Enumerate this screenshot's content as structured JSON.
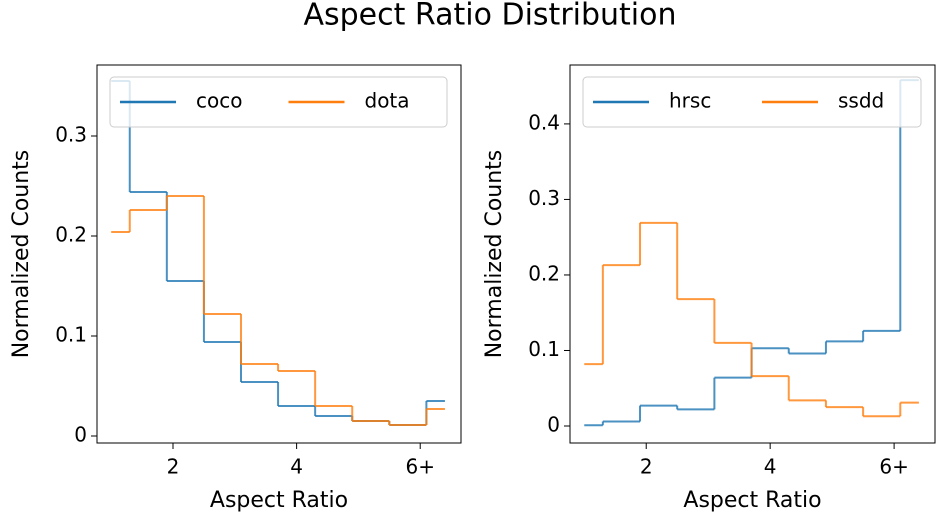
{
  "title": "Aspect Ratio Distribution",
  "chart_data": [
    {
      "type": "histogram",
      "xlabel": "Aspect Ratio",
      "ylabel": "Normalized Counts",
      "bins": [
        1.0,
        1.3,
        1.9,
        2.5,
        3.1,
        3.7,
        4.3,
        4.9,
        5.5,
        6.1,
        6.4
      ],
      "xlim": [
        0.77,
        6.66
      ],
      "ylim": [
        -0.007,
        0.371
      ],
      "xticks": [
        2,
        4,
        {
          "value": 6,
          "label": "6+"
        }
      ],
      "yticks": [
        0.0,
        0.1,
        0.2,
        0.3
      ],
      "legend": "upper",
      "legend_columns": 2,
      "series": [
        {
          "name": "coco",
          "color": "#1f77b4",
          "values": [
            0.355,
            0.244,
            0.155,
            0.094,
            0.054,
            0.03,
            0.02,
            0.015,
            0.011,
            0.035
          ]
        },
        {
          "name": "dota",
          "color": "#ff7f0e",
          "values": [
            0.204,
            0.226,
            0.24,
            0.122,
            0.072,
            0.065,
            0.03,
            0.015,
            0.011,
            0.027
          ]
        }
      ]
    },
    {
      "type": "histogram",
      "xlabel": "Aspect Ratio",
      "ylabel": "Normalized Counts",
      "bins": [
        1.0,
        1.3,
        1.9,
        2.5,
        3.1,
        3.7,
        4.3,
        4.9,
        5.5,
        6.1,
        6.4
      ],
      "xlim": [
        0.77,
        6.66
      ],
      "ylim": [
        -0.0225,
        0.478
      ],
      "xticks": [
        2,
        4,
        {
          "value": 6,
          "label": "6+"
        }
      ],
      "yticks": [
        0.0,
        0.1,
        0.2,
        0.3,
        0.4
      ],
      "legend": "upper",
      "legend_columns": 2,
      "series": [
        {
          "name": "hrsc",
          "color": "#1f77b4",
          "values": [
            0.001,
            0.006,
            0.027,
            0.022,
            0.064,
            0.103,
            0.096,
            0.112,
            0.126,
            0.458
          ]
        },
        {
          "name": "ssdd",
          "color": "#ff7f0e",
          "values": [
            0.082,
            0.213,
            0.269,
            0.168,
            0.11,
            0.066,
            0.034,
            0.025,
            0.013,
            0.031
          ]
        }
      ]
    }
  ]
}
